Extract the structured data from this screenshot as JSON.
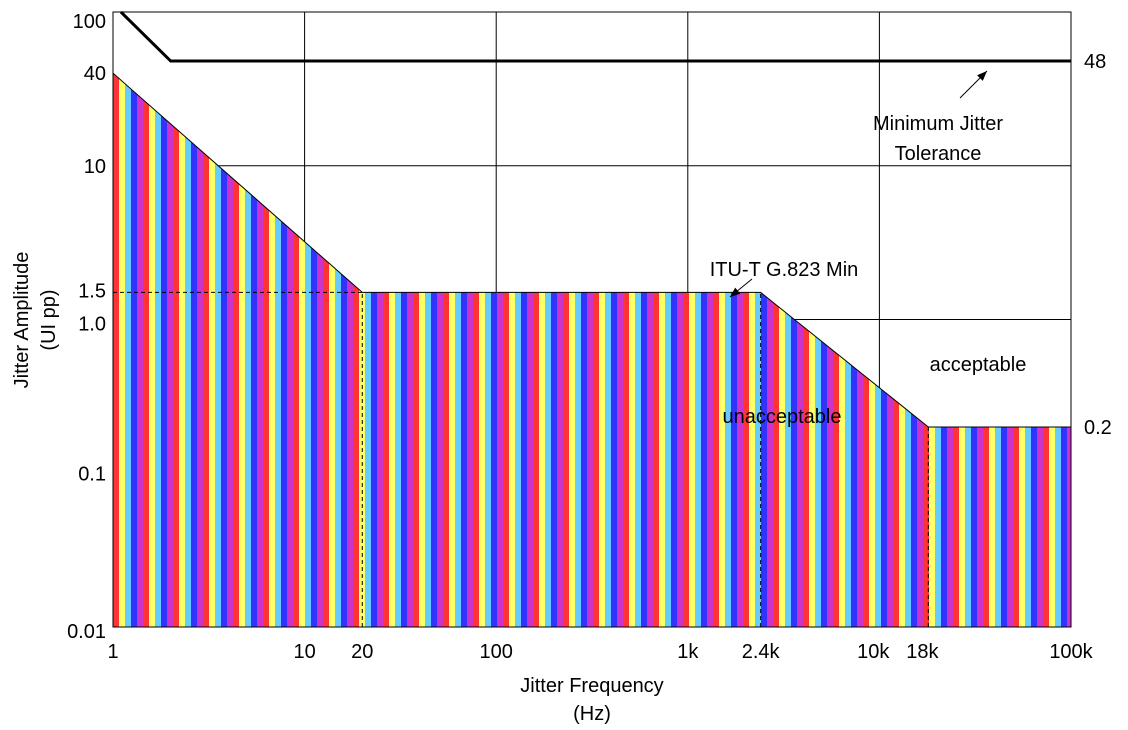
{
  "chart_data": {
    "type": "area",
    "title": "",
    "xlabel_line1": "Jitter Frequency",
    "xlabel_line2": "(Hz)",
    "ylabel_line1": "Jitter Amplitude",
    "ylabel_line2": "(UI pp)",
    "x_scale": "log",
    "y_scale": "log",
    "xlim": [
      1,
      100000
    ],
    "ylim": [
      0.01,
      100
    ],
    "grid": true,
    "x_ticks": [
      {
        "value": 1,
        "label": "1"
      },
      {
        "value": 10,
        "label": "10"
      },
      {
        "value": 20,
        "label": "20"
      },
      {
        "value": 100,
        "label": "100"
      },
      {
        "value": 1000,
        "label": "1k"
      },
      {
        "value": 2400,
        "label": "2.4k"
      },
      {
        "value": 10000,
        "label": "10k"
      },
      {
        "value": 18000,
        "label": "18k"
      },
      {
        "value": 100000,
        "label": "100k"
      }
    ],
    "x_gridlines": [
      1,
      10,
      100,
      1000,
      10000,
      100000
    ],
    "y_ticks": [
      {
        "value": 0.01,
        "label": "0.01"
      },
      {
        "value": 0.1,
        "label": "0.1"
      },
      {
        "value": 1.0,
        "label": "1.0"
      },
      {
        "value": 1.5,
        "label": "1.5"
      },
      {
        "value": 10,
        "label": "10"
      },
      {
        "value": 40,
        "label": "40"
      },
      {
        "value": 100,
        "label": "100"
      }
    ],
    "y_gridlines": [
      0.01,
      0.1,
      1,
      10,
      100
    ],
    "series": [
      {
        "name": "ITU-T G.823 Min",
        "role": "unacceptable-region-boundary",
        "points": [
          [
            1,
            40
          ],
          [
            20,
            1.5
          ],
          [
            2400,
            1.5
          ],
          [
            18000,
            0.2
          ],
          [
            100000,
            0.2
          ]
        ]
      },
      {
        "name": "Minimum Jitter Tolerance",
        "role": "line",
        "points": [
          [
            1.1,
            100
          ],
          [
            2,
            48
          ],
          [
            100000,
            48
          ]
        ]
      }
    ],
    "stripe_colors": [
      "#ff3333",
      "#ffff66",
      "#66ccff",
      "#3333ff",
      "#cc33cc"
    ],
    "dashed_guides": [
      {
        "from": [
          1,
          1.5
        ],
        "to": [
          20,
          1.5
        ]
      },
      {
        "from": [
          20,
          0.01
        ],
        "to": [
          20,
          1.5
        ]
      },
      {
        "from": [
          2400,
          0.01
        ],
        "to": [
          2400,
          1.5
        ]
      },
      {
        "from": [
          18000,
          0.01
        ],
        "to": [
          18000,
          0.2
        ]
      }
    ],
    "right_labels": [
      {
        "value": 48,
        "label": "48"
      },
      {
        "value": 0.2,
        "label": "0.2"
      }
    ],
    "annotations": {
      "min_tol_line1": "Minimum Jitter",
      "min_tol_line2": "Tolerance",
      "itu": "ITU-T G.823 Min",
      "acceptable": "acceptable",
      "unacceptable": "unacceptable"
    }
  }
}
